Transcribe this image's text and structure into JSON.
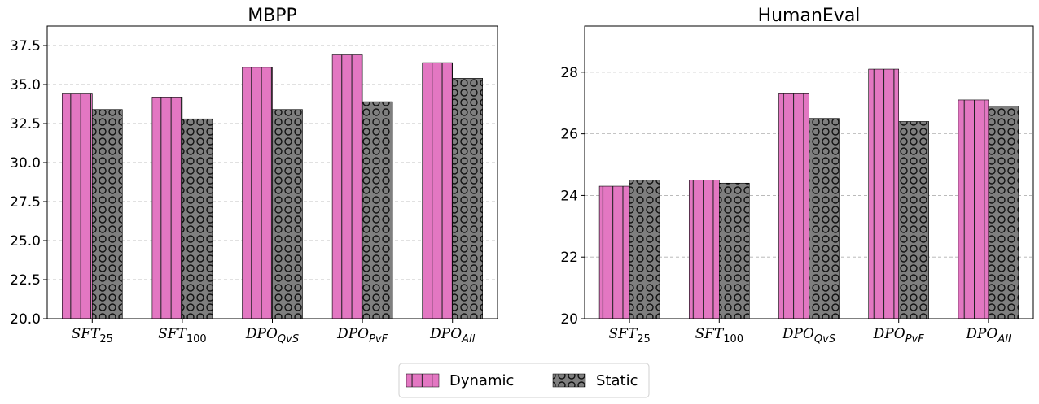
{
  "chart_data": [
    {
      "type": "bar",
      "title": "MBPP",
      "categories": [
        "SFT",
        "SFT",
        "DPO",
        "DPO",
        "DPO"
      ],
      "category_subscripts": [
        "25",
        "100",
        "QvS",
        "PvF",
        "All"
      ],
      "series": [
        {
          "name": "Dynamic",
          "values": [
            34.4,
            34.2,
            36.1,
            36.9,
            36.4
          ]
        },
        {
          "name": "Static",
          "values": [
            33.4,
            32.8,
            33.4,
            33.9,
            35.4
          ]
        }
      ],
      "ylim": [
        20.0,
        38.75
      ],
      "yticks": [
        20.0,
        22.5,
        25.0,
        27.5,
        30.0,
        32.5,
        35.0,
        37.5
      ],
      "ytick_labels": [
        "20.0",
        "22.5",
        "25.0",
        "27.5",
        "30.0",
        "32.5",
        "35.0",
        "37.5"
      ],
      "xlabel": "",
      "ylabel": "",
      "grid": true
    },
    {
      "type": "bar",
      "title": "HumanEval",
      "categories": [
        "SFT",
        "SFT",
        "DPO",
        "DPO",
        "DPO"
      ],
      "category_subscripts": [
        "25",
        "100",
        "QvS",
        "PvF",
        "All"
      ],
      "series": [
        {
          "name": "Dynamic",
          "values": [
            24.3,
            24.5,
            27.3,
            28.1,
            27.1
          ]
        },
        {
          "name": "Static",
          "values": [
            24.5,
            24.4,
            26.5,
            26.4,
            26.9
          ]
        }
      ],
      "ylim": [
        20.0,
        29.5
      ],
      "yticks": [
        20,
        22,
        24,
        26,
        28
      ],
      "ytick_labels": [
        "20",
        "22",
        "24",
        "26",
        "28"
      ],
      "xlabel": "",
      "ylabel": "",
      "grid": true
    }
  ],
  "legend": {
    "position": "bottom-center",
    "items": [
      {
        "label": "Dynamic",
        "color": "#e377c2",
        "pattern": "vertical-lines"
      },
      {
        "label": "Static",
        "color": "#7f7f7f",
        "pattern": "circles"
      }
    ]
  }
}
